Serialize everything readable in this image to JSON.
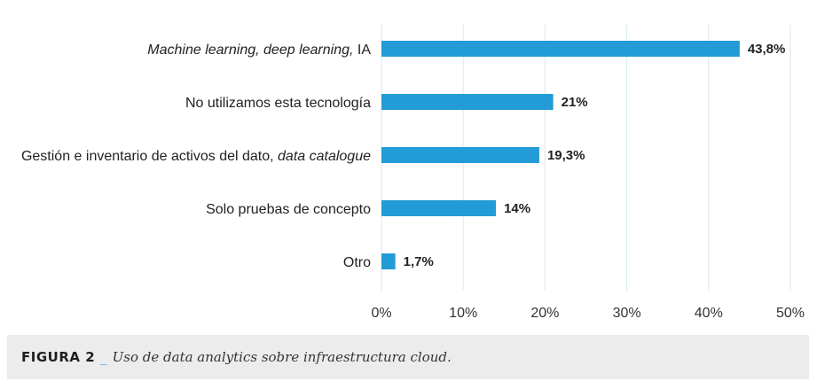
{
  "chart_data": {
    "type": "bar",
    "orientation": "horizontal",
    "categories": [
      [
        {
          "t": "Machine learning, deep learning,",
          "i": true
        },
        {
          "t": " IA",
          "i": false
        }
      ],
      [
        {
          "t": "No utilizamos esta tecnología",
          "i": false
        }
      ],
      [
        {
          "t": "Gestión e inventario de activos del dato, ",
          "i": false
        },
        {
          "t": "data catalogue",
          "i": true
        }
      ],
      [
        {
          "t": "Solo pruebas de concepto",
          "i": false
        }
      ],
      [
        {
          "t": "Otro",
          "i": false
        }
      ]
    ],
    "values": [
      43.8,
      21,
      19.3,
      14,
      1.7
    ],
    "value_labels": [
      "43,8%",
      "21%",
      "19,3%",
      "14%",
      "1,7%"
    ],
    "xlim": [
      0,
      50
    ],
    "xticks": [
      0,
      10,
      20,
      30,
      40,
      50
    ],
    "xtick_labels": [
      "0%",
      "10%",
      "20%",
      "30%",
      "40%",
      "50%"
    ],
    "bar_color": "#229bd6",
    "grid_color": "#d6e9f2",
    "grid": true
  },
  "caption": {
    "label": "FIGURA 2",
    "separator": "_",
    "text": "Uso de data analytics sobre infraestructura cloud."
  }
}
